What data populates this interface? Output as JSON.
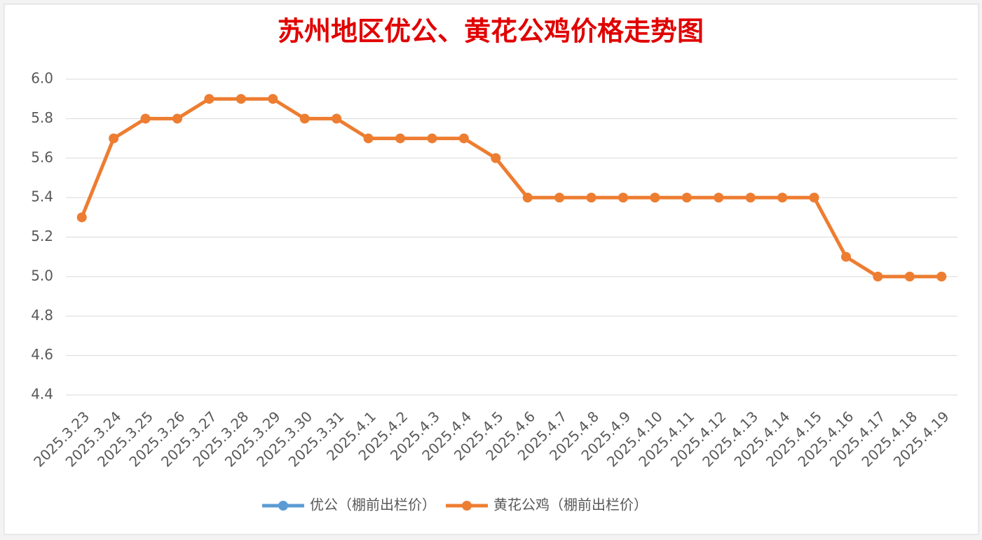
{
  "chart_data": {
    "type": "line",
    "title": "苏州地区优公、黄花公鸡价格走势图",
    "categories": [
      "2025.3.23",
      "2025.3.24",
      "2025.3.25",
      "2025.3.26",
      "2025.3.27",
      "2025.3.28",
      "2025.3.29",
      "2025.3.30",
      "2025.3.31",
      "2025.4.1",
      "2025.4.2",
      "2025.4.3",
      "2025.4.4",
      "2025.4.5",
      "2025.4.6",
      "2025.4.7",
      "2025.4.8",
      "2025.4.9",
      "2025.4.10",
      "2025.4.11",
      "2025.4.12",
      "2025.4.13",
      "2025.4.14",
      "2025.4.15",
      "2025.4.16",
      "2025.4.17",
      "2025.4.18",
      "2025.4.19"
    ],
    "series": [
      {
        "name": "优公（棚前出栏价）",
        "color": "#5b9bd5",
        "values": [
          null,
          null,
          null,
          null,
          null,
          null,
          null,
          null,
          null,
          null,
          null,
          null,
          null,
          null,
          null,
          null,
          null,
          null,
          null,
          null,
          null,
          null,
          null,
          null,
          null,
          null,
          null,
          null
        ]
      },
      {
        "name": "黄花公鸡（棚前出栏价）",
        "color": "#ed7d31",
        "values": [
          5.3,
          5.7,
          5.8,
          5.8,
          5.9,
          5.9,
          5.9,
          5.8,
          5.8,
          5.7,
          5.7,
          5.7,
          5.7,
          5.6,
          5.4,
          5.4,
          5.4,
          5.4,
          5.4,
          5.4,
          5.4,
          5.4,
          5.4,
          5.4,
          5.1,
          5.0,
          5.0,
          5.0
        ]
      }
    ],
    "ylim": [
      4.4,
      6.0
    ],
    "yticks": [
      4.4,
      4.6,
      4.8,
      {
        "value": 5.0,
        "label": "5.0"
      },
      5.2,
      5.4,
      5.6,
      5.8,
      {
        "value": 6.0,
        "label": "6.0"
      }
    ],
    "grid": true,
    "legend": "bottom"
  }
}
